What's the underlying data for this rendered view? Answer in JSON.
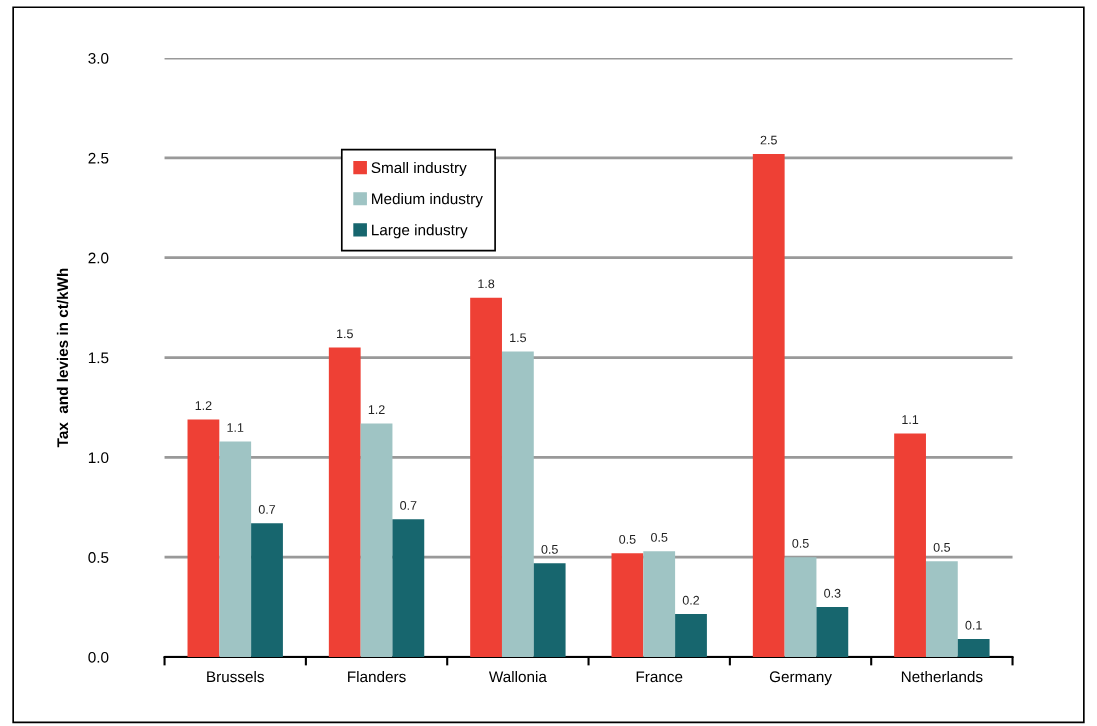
{
  "chart_data": {
    "type": "bar",
    "ylabel": "Tax  and levies in ct/kWh",
    "categories": [
      "Brussels",
      "Flanders",
      "Wallonia",
      "France",
      "Germany",
      "Netherlands"
    ],
    "series": [
      {
        "name": "Small industry",
        "color": "#ee4035",
        "values": [
          1.19,
          1.55,
          1.8,
          0.52,
          2.52,
          1.12
        ],
        "value_labels": [
          "1.2",
          "1.5",
          "1.8",
          "0.5",
          "2.5",
          "1.1"
        ]
      },
      {
        "name": "Medium industry",
        "color": "#9fc4c4",
        "values": [
          1.08,
          1.17,
          1.53,
          0.53,
          0.5,
          0.48
        ],
        "value_labels": [
          "1.1",
          "1.2",
          "1.5",
          "0.5",
          "0.5",
          "0.5"
        ]
      },
      {
        "name": "Large industry",
        "color": "#17666e",
        "values": [
          0.67,
          0.69,
          0.47,
          0.215,
          0.25,
          0.09
        ],
        "value_labels": [
          "0.7",
          "0.7",
          "0.5",
          "0.2",
          "0.3",
          "0.1"
        ]
      }
    ],
    "ylim": [
      0,
      3.0
    ],
    "yticks": [
      {
        "value": 0,
        "label": "0.0"
      },
      {
        "value": 0.5,
        "label": "0.5"
      },
      {
        "value": 1,
        "label": "1.0"
      },
      {
        "value": 1.5,
        "label": "1.5"
      },
      {
        "value": 2,
        "label": "2.0"
      },
      {
        "value": 2.5,
        "label": "2.5"
      },
      {
        "value": 3,
        "label": "3.0"
      }
    ],
    "grid": "y",
    "legend": "top left"
  }
}
